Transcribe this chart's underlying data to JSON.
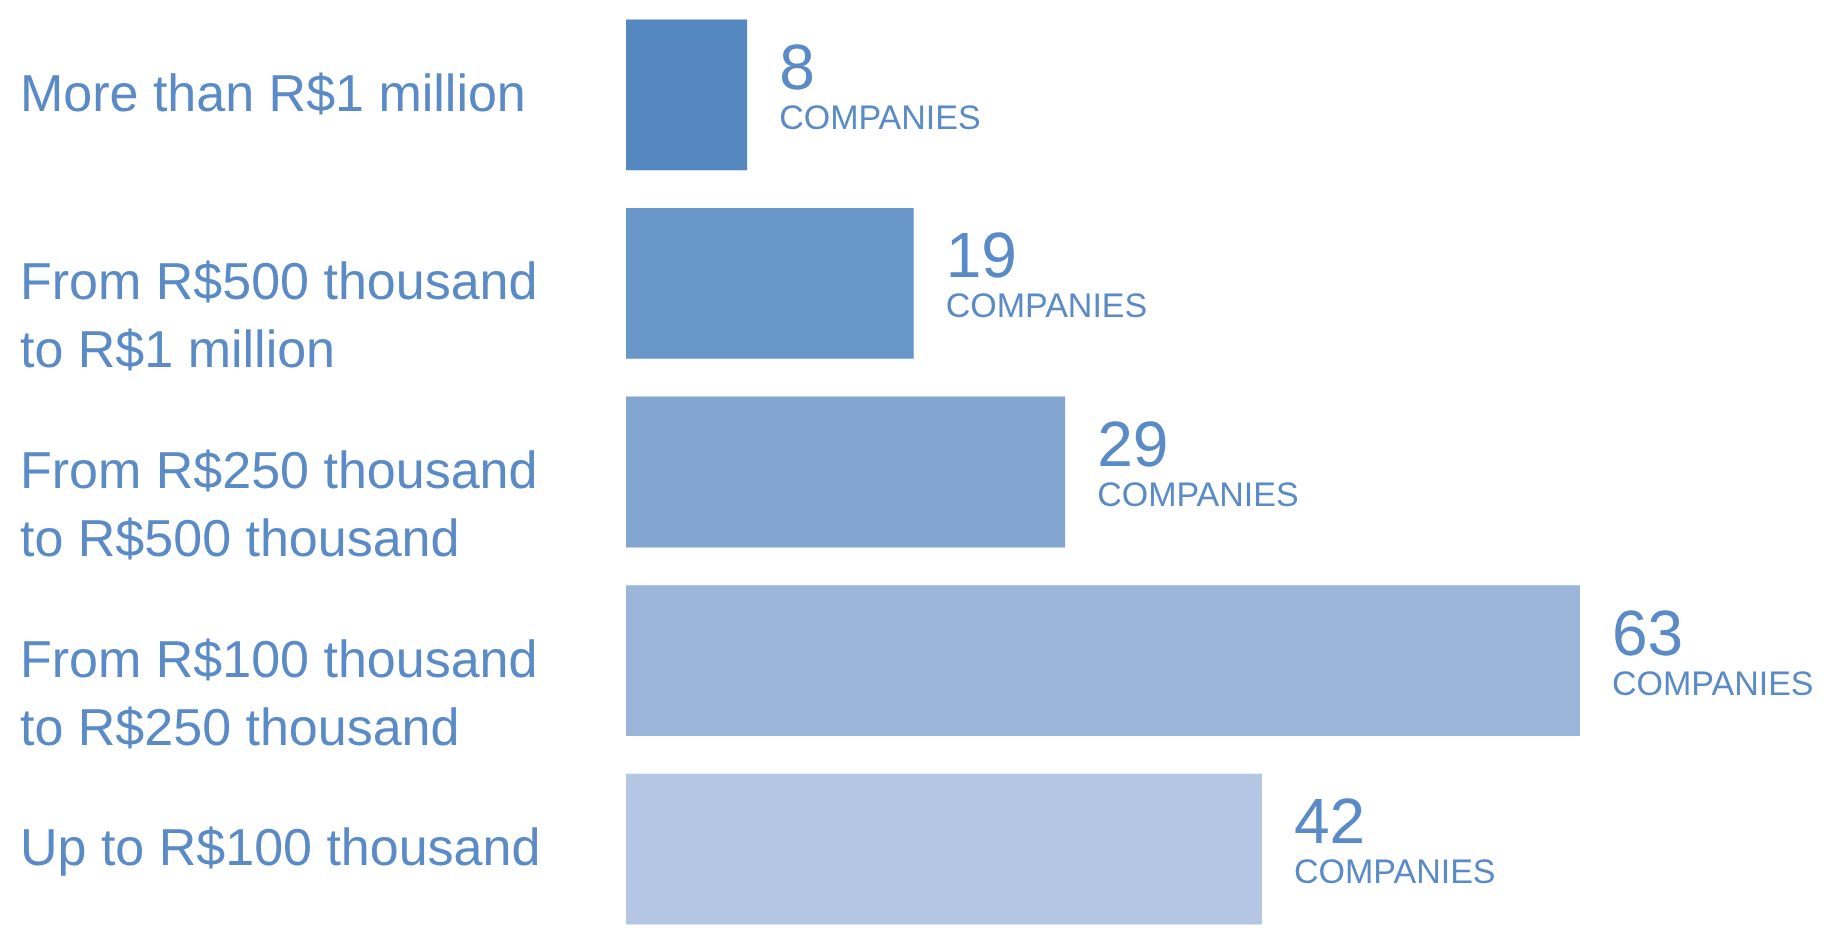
{
  "chart_data": {
    "type": "bar",
    "orientation": "horizontal",
    "categories": [
      "More than R$1 million",
      "From R$500 thousand to R$1 million",
      "From R$250 thousand to R$500 thousand",
      "From R$100 thousand to R$250 thousand",
      "Up to R$100 thousand"
    ],
    "values": [
      8,
      19,
      29,
      63,
      42
    ],
    "colors": [
      "#5588c1",
      "#6a97c9",
      "#83a6d1",
      "#9bb5da",
      "#b3c7e4"
    ],
    "data_labels": true,
    "annotations": [
      "COMPANIES",
      "COMPANIES",
      "COMPANIES",
      "COMPANIES",
      "COMPANIES"
    ]
  }
}
